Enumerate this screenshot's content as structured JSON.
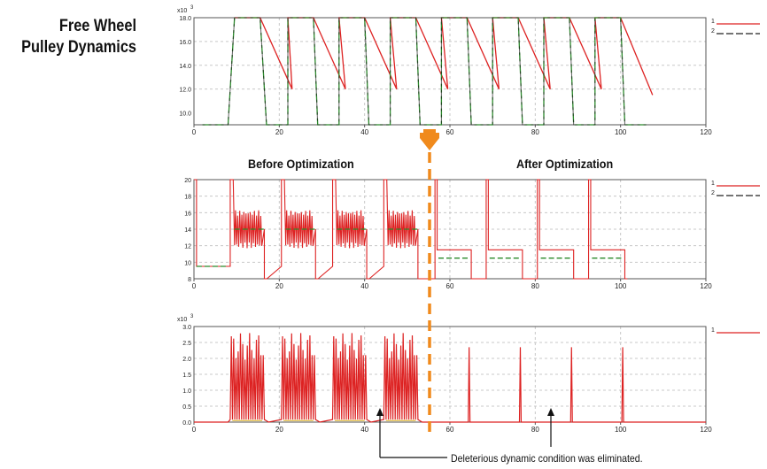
{
  "title": {
    "line1": "Free Wheel",
    "line2": "Pulley Dynamics"
  },
  "sections": {
    "before": "Before Optimization",
    "after": "After Optimization"
  },
  "annotation": "Deleterious dynamic condition was eliminated.",
  "colors": {
    "series1": "#dd2222",
    "series2": "#2a8a2a",
    "series2_alt": "#222222",
    "frame": "#555555",
    "grid": "#c8c8c8",
    "divider": "#f08a1c"
  },
  "chart_data": [
    {
      "type": "line",
      "title": "",
      "ylabel": "",
      "xlabel": "",
      "multiplier": "x10",
      "multiplier_exp": "3",
      "xlim": [
        0,
        120
      ],
      "ylim": [
        9,
        18
      ],
      "xticks": [
        0,
        20,
        40,
        60,
        80,
        100,
        120
      ],
      "xtick_labels": [
        "0",
        "20",
        "40",
        "60",
        "80",
        "100",
        "120"
      ],
      "yticks": [
        10,
        12,
        14,
        16,
        18
      ],
      "ytick_labels": [
        "10.0",
        "12.0",
        "14.0",
        "16.0",
        "18.0"
      ],
      "legend": [
        "1",
        "2"
      ],
      "series": [
        {
          "name": "1",
          "color": "#dd2222",
          "style": "solid",
          "x": [
            9.5,
            15.5,
            23,
            22,
            28,
            35.5,
            34,
            40,
            47.5,
            46,
            52,
            59.5,
            58,
            64,
            71.5,
            70,
            76,
            83.5,
            82,
            88,
            95.5,
            94,
            100,
            107.5
          ],
          "y": [
            18,
            18,
            12,
            18,
            18,
            12,
            18,
            18,
            12,
            18,
            18,
            12,
            18,
            18,
            12,
            18,
            18,
            12,
            18,
            18,
            12,
            18,
            18,
            11.5
          ]
        },
        {
          "name": "2",
          "color": "#2a8a2a",
          "style": "dashed",
          "x": [
            2,
            8,
            9.5,
            15.5,
            17,
            22,
            22,
            28,
            29,
            34,
            34,
            40,
            41,
            46,
            46,
            52,
            53,
            58,
            58,
            64,
            65,
            70,
            70,
            76,
            77,
            82,
            82,
            88,
            89,
            94,
            94,
            100,
            101,
            106
          ],
          "y": [
            9,
            9,
            18,
            18,
            9,
            9,
            18,
            18,
            9,
            9,
            18,
            18,
            9,
            9,
            18,
            18,
            9,
            9,
            18,
            18,
            9,
            9,
            18,
            18,
            9,
            9,
            18,
            18,
            9,
            9,
            18,
            18,
            9,
            9
          ]
        }
      ]
    },
    {
      "type": "line",
      "title": "",
      "xlim": [
        0,
        120
      ],
      "ylim": [
        8,
        20
      ],
      "xticks": [
        0,
        20,
        40,
        60,
        80,
        100,
        120
      ],
      "xtick_labels": [
        "0",
        "20",
        "40",
        "60",
        "80",
        "100",
        "120"
      ],
      "yticks": [
        8,
        10,
        12,
        14,
        16,
        18,
        20
      ],
      "ytick_labels": [
        "8",
        "10",
        "12",
        "14",
        "16",
        "18",
        "20"
      ],
      "legend": [
        "1",
        "2"
      ],
      "oscillation": {
        "mean": 14,
        "amplitude": 2.3,
        "start_min": 8.5
      },
      "series": [
        {
          "name": "1",
          "color": "#dd2222",
          "style": "solid",
          "pulses_before": [
            [
              8.5,
              16.5
            ],
            [
              20.5,
              28.5
            ],
            [
              32.5,
              40.5
            ],
            [
              44.5,
              52.5
            ]
          ],
          "pulses_after": [
            [
              56.5,
              65
            ],
            [
              68.5,
              77
            ],
            [
              80.5,
              89
            ],
            [
              92.5,
              101
            ]
          ],
          "settle_before": 14,
          "settle_after": 11.5,
          "base": 9.5,
          "start": 20
        },
        {
          "name": "2",
          "color": "#2a8a2a",
          "style": "dashed",
          "settle_before": 14,
          "settle_after": 10.5,
          "base": 9.5
        }
      ]
    },
    {
      "type": "line",
      "title": "",
      "multiplier": "x10",
      "multiplier_exp": "3",
      "xlim": [
        0,
        120
      ],
      "ylim": [
        0,
        3
      ],
      "xticks": [
        0,
        20,
        40,
        60,
        80,
        100,
        120
      ],
      "xtick_labels": [
        "0",
        "20",
        "40",
        "60",
        "80",
        "100",
        "120"
      ],
      "yticks": [
        0,
        0.5,
        1,
        1.5,
        2,
        2.5,
        3
      ],
      "ytick_labels": [
        "0.0",
        "0.5",
        "1.0",
        "1.5",
        "2.0",
        "2.5",
        "3.0"
      ],
      "legend": [
        "1"
      ],
      "series": [
        {
          "name": "1",
          "color": "#dd2222",
          "style": "solid",
          "bursts": [
            [
              8.5,
              16.5
            ],
            [
              20.5,
              28.5
            ],
            [
              32.5,
              40.5
            ],
            [
              44.5,
              52.5
            ]
          ],
          "burst_peak": 2.8,
          "spikes_x": [
            64.5,
            76.5,
            88.5,
            100.5
          ],
          "spike_peak": 2.35
        }
      ]
    }
  ]
}
